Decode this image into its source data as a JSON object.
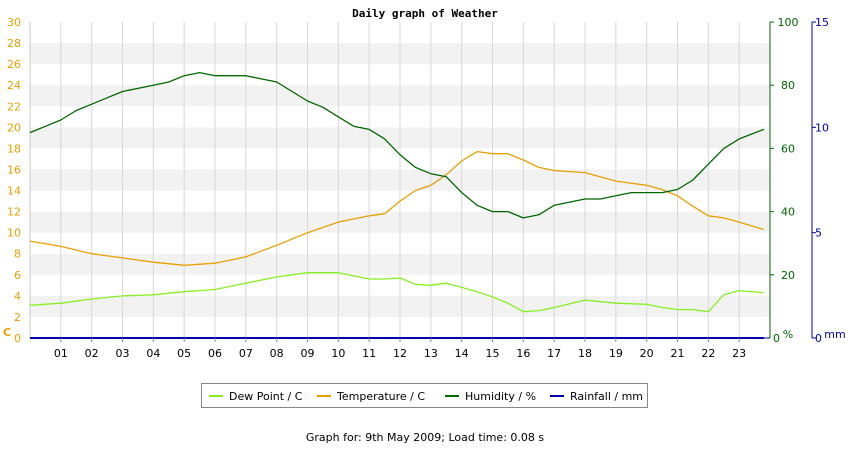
{
  "chart_data": {
    "type": "line",
    "title": "Daily graph of Weather",
    "x_ticks": [
      "01",
      "02",
      "03",
      "04",
      "05",
      "06",
      "07",
      "08",
      "09",
      "10",
      "11",
      "12",
      "13",
      "14",
      "15",
      "16",
      "17",
      "18",
      "19",
      "20",
      "21",
      "22",
      "23"
    ],
    "xlim": [
      0,
      24
    ],
    "axes": {
      "left": {
        "unit": "C",
        "min": 0,
        "max": 30,
        "ticks": [
          0,
          2,
          4,
          6,
          8,
          10,
          12,
          14,
          16,
          18,
          20,
          22,
          24,
          26,
          28,
          30
        ],
        "color": "#e8a000"
      },
      "right1": {
        "unit": "%",
        "min": 0,
        "max": 100,
        "ticks": [
          0,
          20,
          40,
          60,
          80,
          100
        ],
        "color": "#006600"
      },
      "right2": {
        "unit": "mm",
        "min": 0,
        "max": 15,
        "ticks": [
          0,
          5,
          10,
          15
        ],
        "color": "#0000aa"
      }
    },
    "grid": true,
    "legend_position": "bottom",
    "series": [
      {
        "name": "Dew Point / C",
        "axis": "left",
        "color": "#88ee22",
        "x": [
          0,
          1,
          1.5,
          2,
          3,
          4,
          5,
          6,
          7,
          8,
          9,
          10,
          11,
          11.5,
          12,
          12.5,
          13,
          13.5,
          14,
          14.5,
          15,
          15.5,
          16,
          16.5,
          17,
          18,
          19,
          20,
          20.5,
          21,
          21.5,
          22,
          22.5,
          23,
          23.8
        ],
        "y": [
          3.1,
          3.3,
          3.5,
          3.7,
          4.0,
          4.1,
          4.4,
          4.6,
          5.2,
          5.8,
          6.2,
          6.2,
          5.6,
          5.6,
          5.7,
          5.1,
          5.0,
          5.2,
          4.8,
          4.4,
          3.9,
          3.3,
          2.5,
          2.6,
          2.9,
          3.6,
          3.3,
          3.2,
          2.9,
          2.7,
          2.7,
          2.5,
          4.1,
          4.5,
          4.3
        ]
      },
      {
        "name": "Temperature / C",
        "axis": "left",
        "color": "#e8a000",
        "x": [
          0,
          1,
          2,
          3,
          4,
          5,
          6,
          7,
          8,
          9,
          10,
          11,
          11.5,
          12,
          12.5,
          13,
          13.5,
          14,
          14.5,
          15,
          15.5,
          16,
          16.5,
          17,
          18,
          19,
          20,
          20.5,
          21,
          21.5,
          22,
          22.5,
          23,
          23.8
        ],
        "y": [
          9.2,
          8.7,
          8.0,
          7.6,
          7.2,
          6.9,
          7.1,
          7.7,
          8.8,
          10.0,
          11.0,
          11.6,
          11.8,
          13.0,
          14.0,
          14.5,
          15.5,
          16.8,
          17.7,
          17.5,
          17.5,
          16.9,
          16.2,
          15.9,
          15.7,
          14.9,
          14.5,
          14.1,
          13.5,
          12.5,
          11.6,
          11.4,
          11.0,
          10.3
        ]
      },
      {
        "name": "Humidity / %",
        "axis": "right1",
        "color": "#006600",
        "x": [
          0,
          0.5,
          1,
          1.5,
          2,
          2.5,
          3,
          3.5,
          4,
          4.5,
          5,
          5.5,
          6,
          6.5,
          7,
          7.5,
          8,
          8.5,
          9,
          9.5,
          10,
          10.5,
          11,
          11.5,
          12,
          12.5,
          13,
          13.5,
          14,
          14.5,
          15,
          15.5,
          16,
          16.5,
          17,
          17.5,
          18,
          18.5,
          19,
          19.5,
          20,
          20.5,
          21,
          21.5,
          22,
          22.5,
          23,
          23.8
        ],
        "y": [
          65,
          67,
          69,
          72,
          74,
          76,
          78,
          79,
          80,
          81,
          83,
          84,
          83,
          83,
          83,
          82,
          81,
          78,
          75,
          73,
          70,
          67,
          66,
          63,
          58,
          54,
          52,
          51,
          46,
          42,
          40,
          40,
          38,
          39,
          42,
          43,
          44,
          44,
          45,
          46,
          46,
          46,
          47,
          50,
          55,
          60,
          63,
          66
        ]
      },
      {
        "name": "Rainfall / mm",
        "axis": "right2",
        "color": "#0000aa",
        "x": [
          0,
          23.8
        ],
        "y": [
          0,
          0
        ]
      }
    ],
    "footer": "Graph for: 9th May 2009; Load time: 0.08 s"
  }
}
